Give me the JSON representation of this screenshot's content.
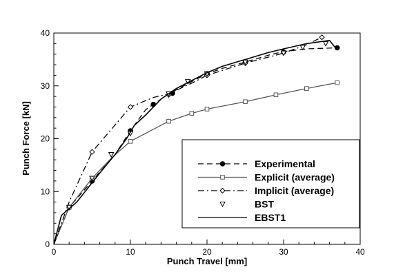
{
  "chart_data": {
    "type": "line",
    "title": "",
    "xlabel": "Punch Travel [mm]",
    "ylabel": "Punch Force [kN]",
    "xlim": [
      0,
      40
    ],
    "ylim": [
      0,
      40
    ],
    "x_ticks": [
      "0",
      "10",
      "20",
      "30",
      "40"
    ],
    "y_ticks": [
      "0",
      "10",
      "20",
      "30",
      "40"
    ],
    "grid": false,
    "legend_position": "bottom-right",
    "series": [
      {
        "name": "Experimental",
        "line": "dashed",
        "marker": "filled-circle",
        "color": "#000000",
        "x": [
          0,
          2,
          5,
          8,
          10,
          12,
          15,
          18,
          20,
          22,
          25,
          28,
          30,
          33,
          37
        ],
        "y": [
          0,
          7.0,
          12.0,
          17.0,
          21.5,
          25.5,
          28.5,
          30.8,
          32.3,
          33.3,
          34.5,
          35.8,
          36.5,
          37.0,
          37.2
        ],
        "marker_x": [
          2,
          5,
          10,
          13,
          15.5,
          20,
          25,
          30,
          37
        ],
        "marker_y": [
          7.0,
          12.0,
          21.5,
          26.5,
          28.6,
          32.3,
          34.5,
          36.4,
          37.2
        ]
      },
      {
        "name": "Explicit (average)",
        "line": "solid",
        "marker": "open-square",
        "color": "#555555",
        "x": [
          0,
          2,
          5,
          7.5,
          10,
          15,
          18,
          20,
          25,
          29,
          33,
          37
        ],
        "y": [
          0,
          7.0,
          12.5,
          16.3,
          19.5,
          23.3,
          24.8,
          25.6,
          27.0,
          28.3,
          29.5,
          30.6
        ],
        "marker_x": [
          2,
          5,
          10,
          15,
          18,
          20,
          25,
          29,
          33,
          37
        ],
        "marker_y": [
          7.0,
          12.5,
          19.5,
          23.3,
          24.8,
          25.6,
          27.0,
          28.3,
          29.5,
          30.6
        ]
      },
      {
        "name": "Implicit (average)",
        "line": "dashdot",
        "marker": "open-diamond",
        "color": "#000000",
        "x": [
          0,
          2,
          5,
          10,
          13,
          15,
          18,
          20,
          25,
          30,
          33,
          35
        ],
        "y": [
          0,
          8.0,
          17.5,
          26.0,
          27.8,
          28.5,
          30.5,
          32.0,
          34.3,
          36.2,
          37.8,
          39.2
        ],
        "marker_x": [
          5,
          10,
          15,
          20,
          25,
          35
        ],
        "marker_y": [
          17.5,
          26.0,
          28.3,
          32.0,
          34.3,
          39.2
        ]
      },
      {
        "name": "BST",
        "line": "none",
        "marker": "open-triangle-down",
        "color": "#000000",
        "x": [
          2,
          5,
          7.5,
          10,
          15,
          17.5,
          20,
          25,
          30,
          32.5,
          35.5
        ],
        "y": [
          7.0,
          12.5,
          17.0,
          21.0,
          28.5,
          30.8,
          32.3,
          34.5,
          36.2,
          37.3,
          38.0
        ]
      },
      {
        "name": "EBST1",
        "line": "solid",
        "marker": "none",
        "color": "#000000",
        "x": [
          0,
          1,
          3,
          6,
          8,
          9.5,
          10.5,
          12,
          14,
          16,
          18,
          20,
          22,
          25,
          28,
          30,
          33,
          36,
          37
        ],
        "y": [
          0,
          5.5,
          8.0,
          13.5,
          17.0,
          20.0,
          22.5,
          24.5,
          27.5,
          29.5,
          31.0,
          32.5,
          33.7,
          35.0,
          36.3,
          37.0,
          38.0,
          38.6,
          36.8
        ]
      }
    ]
  }
}
